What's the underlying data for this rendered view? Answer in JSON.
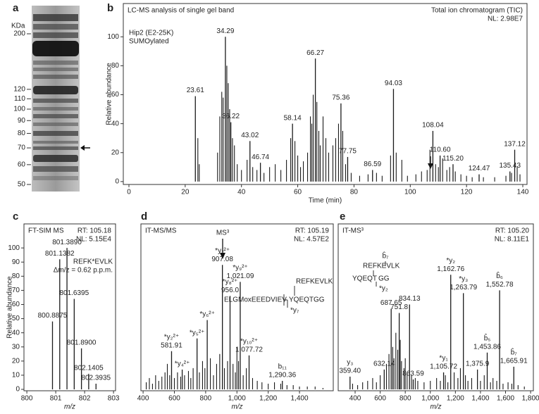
{
  "gel": {
    "panel": "a",
    "unit": "KDa",
    "markers": [
      200,
      120,
      110,
      100,
      90,
      80,
      70,
      60,
      50
    ]
  },
  "chart_data": [
    {
      "type": "spectrum",
      "panel": "b",
      "title": "LC-MS analysis of single gel band",
      "notes_left": [
        "Hip2 (E2-25K)",
        "SUMOylated"
      ],
      "notes_right": [
        "Total ion chromatogram (TIC)",
        "NL: 2.98E7"
      ],
      "xlabel": "Time (min)",
      "ylabel": "Relative abundance",
      "color": "#1a1a1a",
      "xlim": [
        -2,
        141.5
      ],
      "ylim": [
        -2,
        123
      ],
      "xticks": [
        0,
        20,
        40,
        60,
        80,
        100,
        120,
        140
      ],
      "yticks": [
        0,
        20,
        40,
        60,
        80,
        100
      ],
      "x": [
        24.5,
        25,
        31.5,
        32.3,
        33,
        33.5,
        34.8,
        35.3,
        35.8,
        36.8,
        37.5,
        38.5,
        40,
        42,
        44,
        45.5,
        48,
        50,
        52,
        54,
        56,
        57.5,
        59,
        60,
        61,
        62,
        63.5,
        64.5,
        65,
        65.5,
        66.8,
        67.5,
        68,
        69,
        70,
        71,
        72.5,
        73.5,
        74.5,
        76,
        77,
        79,
        82,
        85,
        88,
        90,
        93,
        95,
        97,
        99,
        102,
        104,
        106,
        107,
        109,
        110,
        111.5,
        113,
        114,
        116,
        118,
        120,
        122,
        126,
        130,
        134,
        136,
        138,
        139
      ],
      "values": [
        30,
        12,
        20,
        45,
        62,
        58,
        80,
        68,
        50,
        30,
        25,
        12,
        8,
        15,
        10,
        8,
        6,
        10,
        12,
        8,
        15,
        30,
        28,
        18,
        10,
        14,
        20,
        45,
        40,
        60,
        55,
        35,
        25,
        45,
        30,
        20,
        25,
        30,
        40,
        35,
        12,
        6,
        4,
        5,
        6,
        4,
        18,
        20,
        15,
        4,
        5,
        7,
        8,
        22,
        12,
        10,
        16,
        8,
        10,
        7,
        5,
        4,
        3,
        3,
        3,
        4,
        6,
        10,
        5
      ],
      "peaks": {
        "x": [
          23.61,
          34.29,
          36.22,
          43.02,
          46.74,
          58.14,
          66.27,
          75.36,
          77.75,
          86.59,
          94.03,
          108.04,
          110.6,
          115.2,
          124.47,
          135.43,
          137.12
        ],
        "values": [
          59,
          100,
          41,
          28,
          13,
          40,
          85,
          54,
          17,
          8,
          64,
          35,
          18,
          12,
          5,
          7,
          22
        ],
        "x_labels": [
          "23.61",
          "34.29",
          "36.22",
          "43.02",
          "46.74",
          "58.14",
          "66.27",
          "75.36",
          "77.75",
          "86.59",
          "94.03",
          "108.04",
          "110.60",
          "115.20",
          "124.47",
          "135.43",
          "137.12"
        ]
      }
    },
    {
      "type": "spectrum",
      "panel": "c",
      "title": "FT-SIM MS",
      "notes_right": [
        "RT: 105.18",
        "NL: 5.15E4"
      ],
      "annotations": [
        "REFK*EVLK",
        "Δm/z = 0.62 p.p.m."
      ],
      "xlabel": "m/z",
      "ylabel": "Relative abundance",
      "color": "#1a1a1a",
      "xlim": [
        799.9,
        803.07
      ],
      "ylim": [
        -1,
        117
      ],
      "xticks": [
        800,
        801,
        802,
        803
      ],
      "yticks": [
        0,
        10,
        20,
        30,
        40,
        50,
        60,
        70,
        80,
        90,
        100
      ],
      "peaks": {
        "x": [
          800.8875,
          801.1382,
          801.389,
          801.6395,
          801.89,
          802.1405,
          802.3935
        ],
        "values": [
          48,
          92,
          100,
          64,
          29,
          11,
          4
        ],
        "x_labels": [
          "800.8875",
          "801.1382",
          "801.3890",
          "801.6395",
          "801.8900",
          "802.1405",
          "802.3935"
        ]
      }
    },
    {
      "type": "spectrum",
      "panel": "d",
      "title": "IT-MS/MS",
      "notes_right": [
        "RT: 105.19",
        "NL: 4.57E2"
      ],
      "annotations": [
        "MS³",
        "REFKEVLK",
        "ELGMoxEEEDVIEV",
        "YQEQTGG",
        "*y₇"
      ],
      "xlabel": "m/z",
      "color": "#1a1a1a",
      "xlim": [
        386,
        1616
      ],
      "ylim": [
        -1,
        117
      ],
      "xticks": [
        400,
        600,
        800,
        {
          "value": 1000,
          "label": "1,000"
        },
        {
          "value": 1200,
          "label": "1,200"
        },
        {
          "value": 1400,
          "label": "1,400"
        }
      ],
      "x": [
        420,
        440,
        460,
        480,
        500,
        520,
        540,
        555,
        570,
        600,
        620,
        640,
        665,
        690,
        705,
        720,
        760,
        780,
        795,
        830,
        850,
        870,
        890,
        920,
        940,
        975,
        990,
        1000,
        1010,
        1040,
        1060,
        1100,
        1130,
        1160,
        1200,
        1240,
        1280,
        1320,
        1360,
        1400,
        1450,
        1500,
        1550
      ],
      "values": [
        5,
        8,
        4,
        10,
        6,
        9,
        12,
        18,
        10,
        8,
        12,
        9,
        10,
        13,
        8,
        15,
        12,
        20,
        15,
        22,
        10,
        18,
        25,
        15,
        20,
        18,
        12,
        30,
        20,
        10,
        15,
        8,
        6,
        5,
        4,
        5,
        4,
        3,
        3,
        2,
        2,
        2,
        1
      ],
      "peaks": {
        "x": [
          581.91,
          650,
          745,
          810,
          907.08,
          956.0,
          1021.09,
          1077.72,
          1290.36
        ],
        "values": [
          27,
          14,
          36,
          49,
          88,
          66,
          76,
          24,
          6
        ],
        "x_labels": [
          "581.91",
          null,
          null,
          null,
          "907.08",
          "956.0",
          "1,021.09",
          "1,077.72",
          "1,290.36"
        ],
        "ion_labels": [
          "*y₂²⁺",
          "*y₄²⁺",
          "*y₅²⁺",
          "*y₆²⁺",
          "*y₇²⁺",
          "*y₈²⁺",
          "*y₉²⁺",
          "*y₁₀²⁺",
          "b₁₁"
        ]
      }
    },
    {
      "type": "spectrum",
      "panel": "e",
      "title": "IT-MS³",
      "notes_right": [
        "RT: 105.20",
        "NL: 8.11E1"
      ],
      "annotations": [
        "b̂₇",
        "REFKEVLK",
        "YQEQT",
        "GG",
        "*y₂"
      ],
      "xlabel": "m/z",
      "color": "#1a1a1a",
      "xlim": [
        265,
        1822
      ],
      "ylim": [
        -1,
        117
      ],
      "xticks": [
        400,
        600,
        800,
        {
          "value": 1000,
          "label": "1,000"
        },
        {
          "value": 1200,
          "label": "1,200"
        },
        {
          "value": 1400,
          "label": "1,400"
        },
        {
          "value": 1600,
          "label": "1,600"
        },
        {
          "value": 1800,
          "label": "1,800"
        }
      ],
      "x": [
        380,
        420,
        460,
        500,
        540,
        570,
        600,
        650,
        670,
        700,
        710,
        725,
        740,
        760,
        770,
        790,
        800,
        815,
        850,
        880,
        900,
        950,
        1000,
        1050,
        1080,
        1120,
        1140,
        1190,
        1220,
        1240,
        1280,
        1300,
        1330,
        1400,
        1430,
        1480,
        1500,
        1530,
        1580,
        1620,
        1650,
        1700,
        1750
      ],
      "values": [
        4,
        3,
        5,
        6,
        8,
        5,
        10,
        18,
        25,
        30,
        22,
        40,
        28,
        35,
        20,
        15,
        22,
        12,
        10,
        8,
        6,
        5,
        6,
        8,
        6,
        10,
        5,
        12,
        8,
        15,
        10,
        6,
        8,
        6,
        10,
        5,
        8,
        6,
        4,
        5,
        4,
        3,
        2
      ],
      "peaks": {
        "x": [
          359.4,
          632.14,
          687.65,
          751.8,
          834.13,
          863.59,
          1105.72,
          1162.76,
          1263.79,
          1375.9,
          1453.86,
          1552.78,
          1665.91
        ],
        "values": [
          9,
          14,
          57,
          54,
          60,
          7,
          12,
          81,
          68,
          14,
          26,
          70,
          16
        ],
        "x_labels": [
          "359.40",
          "632.14",
          "687.65",
          "751.8",
          "834.13",
          "863.59",
          "1,105.72",
          "1,162.76",
          "1,263.79",
          "1,375.9",
          "1,453.86",
          "1,552.78",
          "1,665.91"
        ],
        "ion_labels": [
          "y₃",
          null,
          null,
          null,
          null,
          null,
          "*y₁",
          "*y₂",
          "*y₃",
          null,
          "b̂₅",
          "b̂₆",
          "b̂₇"
        ]
      }
    }
  ]
}
